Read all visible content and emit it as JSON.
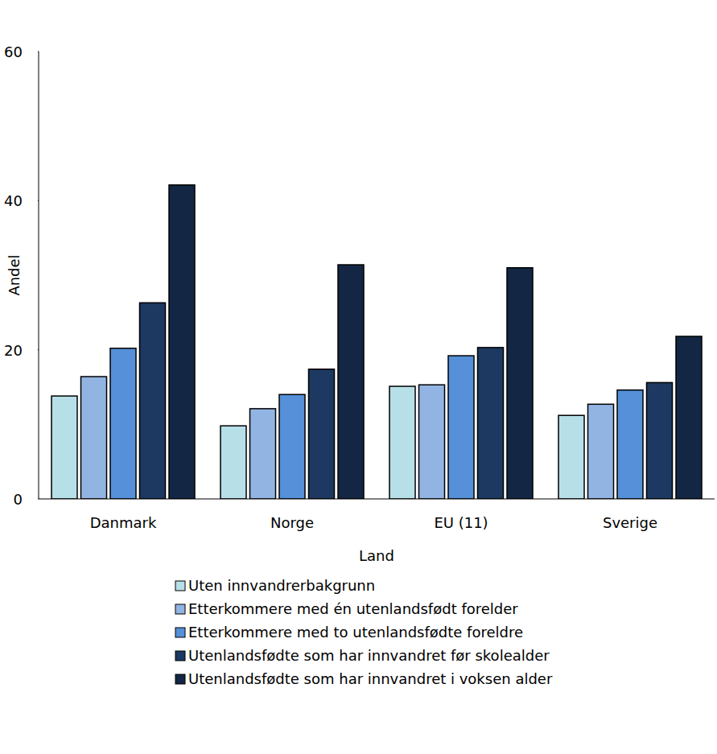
{
  "chart_data": {
    "type": "bar",
    "x_label": "Land",
    "y_label": "Andel",
    "categories": [
      "Danmark",
      "Norge",
      "EU (11)",
      "Sverige"
    ],
    "series": [
      {
        "name": "Uten innvandrerbakgrunn",
        "color": "#b7dfe8",
        "values": [
          13.8,
          9.8,
          15.1,
          11.2
        ]
      },
      {
        "name": "Etterkommere med én utenlandsfødt forelder",
        "color": "#92b4e3",
        "values": [
          16.4,
          12.1,
          15.3,
          12.7
        ]
      },
      {
        "name": "Etterkommere med to utenlandsfødte foreldre",
        "color": "#5590d8",
        "values": [
          20.2,
          14.0,
          19.2,
          14.6
        ]
      },
      {
        "name": "Utenlandsfødte som har innvandret før skolealder",
        "color": "#1d3961",
        "values": [
          26.3,
          17.4,
          20.3,
          15.6
        ]
      },
      {
        "name": "Utenlandsfødte som har innvandret i voksen alder",
        "color": "#132744",
        "values": [
          42.1,
          31.4,
          31.0,
          21.8
        ]
      }
    ],
    "ylim": [
      0,
      60
    ],
    "yticks": [
      0,
      20,
      40,
      60
    ],
    "grid": false,
    "legend": "bottom"
  }
}
